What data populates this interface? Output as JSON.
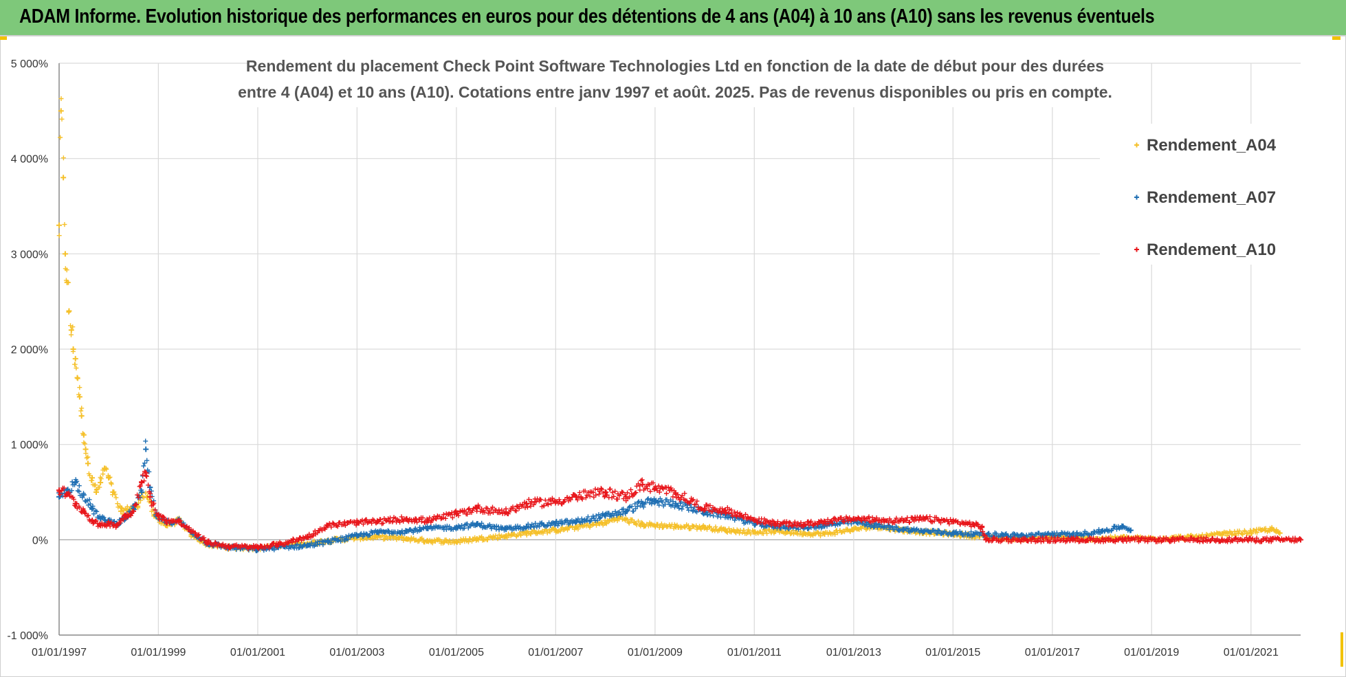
{
  "header": {
    "title": "ADAM Informe. Evolution historique des performances en euros pour des détentions de 4 ans (A04) à 10 ans (A10) sans les revenus éventuels"
  },
  "chart_data": {
    "type": "scatter",
    "title_line1": "Rendement du placement Check Point Software Technologies Ltd en fonction de la date de début pour des durées",
    "title_line2": "entre 4 (A04) et 10 ans (A10).  Cotations entre janv 1997 et août. 2025. Pas de revenus disponibles ou pris en compte.",
    "xlabel": "",
    "ylabel": "",
    "x_range": [
      "1997-01-01",
      "2022-01-01"
    ],
    "x_ticks": [
      "01/01/1997",
      "01/01/1999",
      "01/01/2001",
      "01/01/2003",
      "01/01/2005",
      "01/01/2007",
      "01/01/2009",
      "01/01/2011",
      "01/01/2013",
      "01/01/2015",
      "01/01/2017",
      "01/01/2019",
      "01/01/2021"
    ],
    "y_range": [
      -1000,
      5000
    ],
    "y_ticks": [
      -1000,
      0,
      1000,
      2000,
      3000,
      4000,
      5000
    ],
    "y_tick_labels": [
      "-1 000%",
      "0%",
      "1 000%",
      "2 000%",
      "3 000%",
      "4 000%",
      "5 000%"
    ],
    "grid": true,
    "legend_position": "right",
    "series": [
      {
        "name": "Rendement_A04",
        "color": "#f5c02a",
        "points": [
          [
            "1997-01-01",
            3300
          ],
          [
            "1997-01-15",
            4500
          ],
          [
            "1997-02-01",
            3800
          ],
          [
            "1997-02-15",
            3000
          ],
          [
            "1997-03-01",
            2700
          ],
          [
            "1997-03-15",
            2400
          ],
          [
            "1997-04-01",
            2200
          ],
          [
            "1997-04-15",
            2000
          ],
          [
            "1997-05-01",
            1900
          ],
          [
            "1997-05-15",
            1700
          ],
          [
            "1997-06-01",
            1500
          ],
          [
            "1997-06-15",
            1300
          ],
          [
            "1997-07-01",
            1100
          ],
          [
            "1997-07-15",
            950
          ],
          [
            "1997-08-01",
            800
          ],
          [
            "1997-09-01",
            650
          ],
          [
            "1997-10-01",
            500
          ],
          [
            "1997-11-01",
            600
          ],
          [
            "1997-12-01",
            750
          ],
          [
            "1998-01-01",
            650
          ],
          [
            "1998-02-01",
            500
          ],
          [
            "1998-04-01",
            300
          ],
          [
            "1998-06-01",
            320
          ],
          [
            "1998-08-01",
            350
          ],
          [
            "1998-09-01",
            500
          ],
          [
            "1998-10-15",
            450
          ],
          [
            "1998-12-01",
            250
          ],
          [
            "1999-03-01",
            150
          ],
          [
            "1999-06-01",
            200
          ],
          [
            "1999-09-01",
            50
          ],
          [
            "2000-01-01",
            -50
          ],
          [
            "2000-06-01",
            -80
          ],
          [
            "2001-01-01",
            -90
          ],
          [
            "2001-06-01",
            -60
          ],
          [
            "2002-01-01",
            -40
          ],
          [
            "2002-06-01",
            -10
          ],
          [
            "2003-01-01",
            20
          ],
          [
            "2003-06-01",
            30
          ],
          [
            "2004-01-01",
            10
          ],
          [
            "2004-06-01",
            -10
          ],
          [
            "2005-01-01",
            -20
          ],
          [
            "2005-06-01",
            10
          ],
          [
            "2006-01-01",
            40
          ],
          [
            "2006-06-01",
            70
          ],
          [
            "2007-01-01",
            100
          ],
          [
            "2007-06-01",
            130
          ],
          [
            "2008-01-01",
            180
          ],
          [
            "2008-04-01",
            230
          ],
          [
            "2008-10-01",
            160
          ],
          [
            "2009-06-01",
            140
          ],
          [
            "2010-01-01",
            130
          ],
          [
            "2010-06-01",
            100
          ],
          [
            "2011-01-01",
            80
          ],
          [
            "2011-06-01",
            90
          ],
          [
            "2012-01-01",
            70
          ],
          [
            "2012-06-01",
            60
          ],
          [
            "2013-01-01",
            110
          ],
          [
            "2013-06-01",
            140
          ],
          [
            "2014-01-01",
            100
          ],
          [
            "2014-06-01",
            80
          ],
          [
            "2015-01-01",
            60
          ],
          [
            "2015-06-01",
            40
          ],
          [
            "2016-01-01",
            20
          ],
          [
            "2016-06-01",
            10
          ],
          [
            "2017-01-01",
            30
          ],
          [
            "2017-06-01",
            20
          ],
          [
            "2018-01-01",
            10
          ],
          [
            "2018-06-01",
            20
          ],
          [
            "2019-01-01",
            10
          ],
          [
            "2019-06-01",
            20
          ],
          [
            "2020-01-01",
            30
          ],
          [
            "2020-06-01",
            60
          ],
          [
            "2021-01-01",
            80
          ],
          [
            "2021-06-01",
            110
          ],
          [
            "2021-08-01",
            70
          ]
        ]
      },
      {
        "name": "Rendement_A07",
        "color": "#1f6fb3",
        "points": [
          [
            "1997-01-01",
            450
          ],
          [
            "1997-03-01",
            520
          ],
          [
            "1997-05-01",
            600
          ],
          [
            "1997-07-01",
            470
          ],
          [
            "1997-09-01",
            330
          ],
          [
            "1997-11-01",
            220
          ],
          [
            "1998-01-01",
            200
          ],
          [
            "1998-03-01",
            170
          ],
          [
            "1998-05-01",
            220
          ],
          [
            "1998-07-01",
            330
          ],
          [
            "1998-09-01",
            500
          ],
          [
            "1998-10-01",
            950
          ],
          [
            "1998-11-01",
            550
          ],
          [
            "1998-12-15",
            260
          ],
          [
            "1999-03-01",
            180
          ],
          [
            "1999-06-01",
            200
          ],
          [
            "1999-09-01",
            80
          ],
          [
            "2000-01-01",
            -40
          ],
          [
            "2000-06-01",
            -80
          ],
          [
            "2001-01-01",
            -100
          ],
          [
            "2001-06-01",
            -80
          ],
          [
            "2002-01-01",
            -60
          ],
          [
            "2002-06-01",
            -20
          ],
          [
            "2003-01-01",
            40
          ],
          [
            "2003-06-01",
            80
          ],
          [
            "2004-01-01",
            90
          ],
          [
            "2004-06-01",
            120
          ],
          [
            "2005-01-01",
            130
          ],
          [
            "2005-06-01",
            160
          ],
          [
            "2006-01-01",
            110
          ],
          [
            "2006-06-01",
            140
          ],
          [
            "2007-01-01",
            170
          ],
          [
            "2007-06-01",
            190
          ],
          [
            "2008-01-01",
            250
          ],
          [
            "2008-06-01",
            300
          ],
          [
            "2008-10-01",
            380
          ],
          [
            "2009-01-01",
            400
          ],
          [
            "2009-06-01",
            380
          ],
          [
            "2010-01-01",
            290
          ],
          [
            "2010-06-01",
            260
          ],
          [
            "2011-01-01",
            170
          ],
          [
            "2011-06-01",
            140
          ],
          [
            "2012-01-01",
            130
          ],
          [
            "2012-06-01",
            150
          ],
          [
            "2013-01-01",
            190
          ],
          [
            "2013-06-01",
            150
          ],
          [
            "2014-01-01",
            110
          ],
          [
            "2014-06-01",
            90
          ],
          [
            "2015-01-01",
            70
          ],
          [
            "2015-06-01",
            60
          ],
          [
            "2016-01-01",
            50
          ],
          [
            "2016-06-01",
            40
          ],
          [
            "2017-01-01",
            60
          ],
          [
            "2017-06-01",
            50
          ],
          [
            "2018-01-01",
            90
          ],
          [
            "2018-06-01",
            140
          ],
          [
            "2018-08-01",
            100
          ]
        ]
      },
      {
        "name": "Rendement_A10",
        "color": "#e8161b",
        "points": [
          [
            "1997-01-01",
            520
          ],
          [
            "1997-03-01",
            480
          ],
          [
            "1997-05-01",
            380
          ],
          [
            "1997-07-01",
            300
          ],
          [
            "1997-09-01",
            200
          ],
          [
            "1997-11-01",
            150
          ],
          [
            "1998-01-01",
            170
          ],
          [
            "1998-03-01",
            150
          ],
          [
            "1998-05-01",
            250
          ],
          [
            "1998-07-01",
            300
          ],
          [
            "1998-09-01",
            600
          ],
          [
            "1998-10-01",
            700
          ],
          [
            "1998-11-01",
            450
          ],
          [
            "1999-01-01",
            250
          ],
          [
            "1999-03-01",
            200
          ],
          [
            "1999-06-01",
            190
          ],
          [
            "1999-09-01",
            90
          ],
          [
            "2000-01-01",
            -30
          ],
          [
            "2000-06-01",
            -70
          ],
          [
            "2001-01-01",
            -80
          ],
          [
            "2001-06-01",
            -50
          ],
          [
            "2002-01-01",
            30
          ],
          [
            "2002-06-01",
            150
          ],
          [
            "2003-01-01",
            180
          ],
          [
            "2003-06-01",
            190
          ],
          [
            "2004-01-01",
            220
          ],
          [
            "2004-06-01",
            200
          ],
          [
            "2005-01-01",
            270
          ],
          [
            "2005-06-01",
            330
          ],
          [
            "2006-01-01",
            290
          ],
          [
            "2006-06-01",
            380
          ],
          [
            "2007-01-01",
            400
          ],
          [
            "2007-06-01",
            450
          ],
          [
            "2008-01-01",
            500
          ],
          [
            "2008-06-01",
            450
          ],
          [
            "2008-10-01",
            580
          ],
          [
            "2009-01-01",
            540
          ],
          [
            "2009-06-01",
            490
          ],
          [
            "2010-01-01",
            330
          ],
          [
            "2010-06-01",
            310
          ],
          [
            "2011-01-01",
            210
          ],
          [
            "2011-06-01",
            170
          ],
          [
            "2012-01-01",
            160
          ],
          [
            "2012-06-01",
            190
          ],
          [
            "2013-01-01",
            220
          ],
          [
            "2013-06-01",
            210
          ],
          [
            "2014-01-01",
            200
          ],
          [
            "2014-06-01",
            220
          ],
          [
            "2015-01-01",
            190
          ],
          [
            "2015-06-01",
            160
          ],
          [
            "2015-08-01",
            130
          ],
          [
            "2015-09-01",
            0
          ],
          [
            "2016-06-01",
            0
          ],
          [
            "2017-06-01",
            0
          ],
          [
            "2018-06-01",
            0
          ],
          [
            "2019-06-01",
            0
          ],
          [
            "2020-06-01",
            0
          ],
          [
            "2021-06-01",
            0
          ],
          [
            "2022-01-01",
            0
          ]
        ]
      }
    ]
  }
}
